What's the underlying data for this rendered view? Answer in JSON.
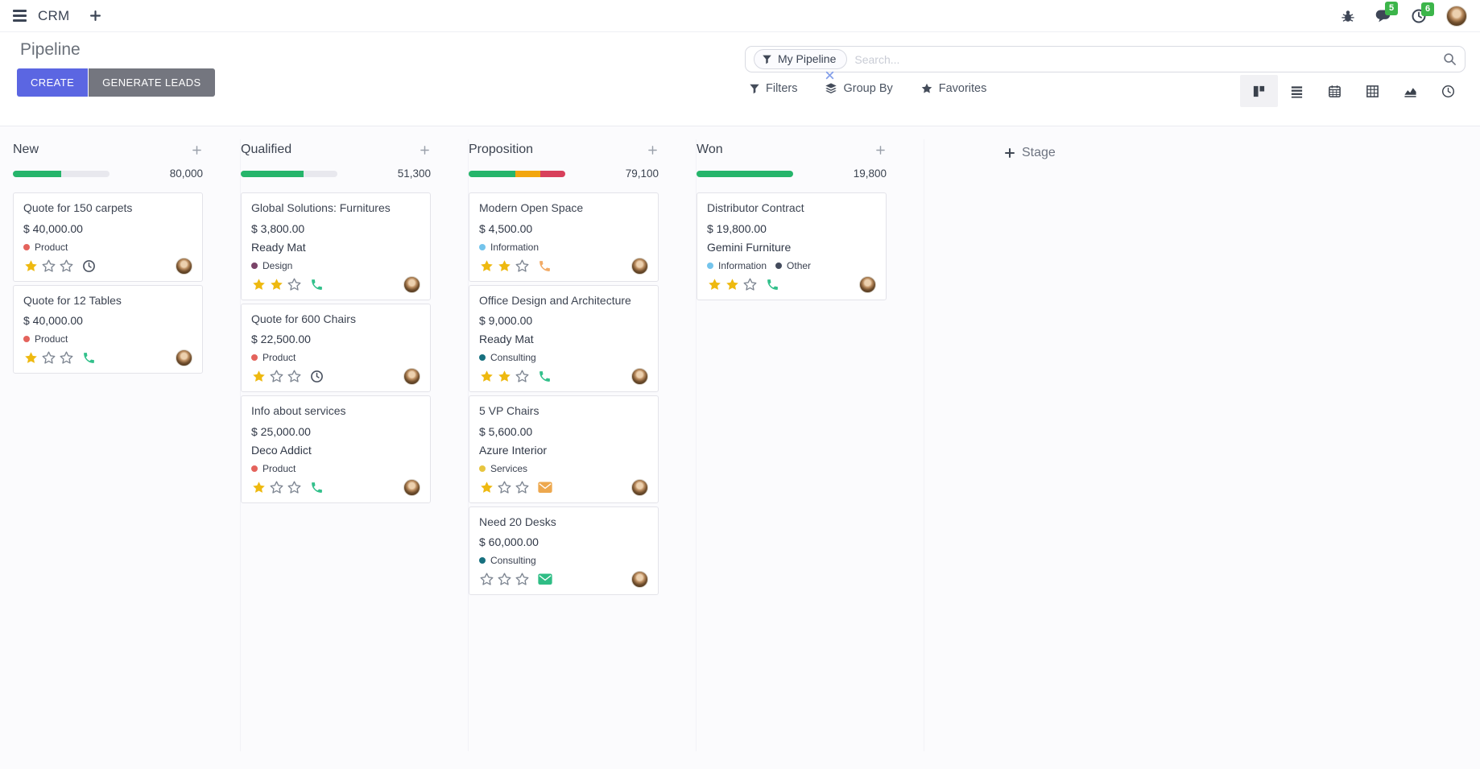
{
  "navbar": {
    "app_name": "CRM",
    "messages_badge": "5",
    "activities_badge": "6"
  },
  "control_panel": {
    "title": "Pipeline",
    "create_label": "CREATE",
    "generate_leads_label": "GENERATE LEADS",
    "search": {
      "facet_label": "My Pipeline",
      "placeholder": "Search..."
    },
    "filters_label": "Filters",
    "group_by_label": "Group By",
    "favorites_label": "Favorites",
    "view_switcher": [
      {
        "name": "kanban",
        "active": true
      },
      {
        "name": "list",
        "active": false
      },
      {
        "name": "calendar",
        "active": false
      },
      {
        "name": "pivot",
        "active": false
      },
      {
        "name": "graph",
        "active": false
      },
      {
        "name": "activity",
        "active": false
      }
    ]
  },
  "kanban": {
    "add_stage_label": "Stage",
    "columns": [
      {
        "name": "New",
        "total": "80,000",
        "progress": [
          {
            "color": "#26b56b",
            "pct": 50
          }
        ],
        "cards": [
          {
            "title": "Quote for 150 carpets",
            "amount": "$ 40,000.00",
            "partner": "",
            "tags": [
              {
                "color": "#e4635c",
                "label": "Product"
              }
            ],
            "stars": 1,
            "activity": {
              "type": "clock",
              "color": "#4a5260"
            }
          },
          {
            "title": "Quote for 12 Tables",
            "amount": "$ 40,000.00",
            "partner": "",
            "tags": [
              {
                "color": "#e4635c",
                "label": "Product"
              }
            ],
            "stars": 1,
            "activity": {
              "type": "phone",
              "color": "#32c08b"
            }
          }
        ]
      },
      {
        "name": "Qualified",
        "total": "51,300",
        "progress": [
          {
            "color": "#26b56b",
            "pct": 65
          }
        ],
        "cards": [
          {
            "title": "Global Solutions: Furnitures",
            "amount": "$ 3,800.00",
            "partner": "Ready Mat",
            "tags": [
              {
                "color": "#7a4468",
                "label": "Design"
              }
            ],
            "stars": 2,
            "activity": {
              "type": "phone",
              "color": "#32c08b"
            }
          },
          {
            "title": "Quote for 600 Chairs",
            "amount": "$ 22,500.00",
            "partner": "",
            "tags": [
              {
                "color": "#e4635c",
                "label": "Product"
              }
            ],
            "stars": 1,
            "activity": {
              "type": "clock",
              "color": "#4a5260"
            }
          },
          {
            "title": "Info about services",
            "amount": "$ 25,000.00",
            "partner": "Deco Addict",
            "tags": [
              {
                "color": "#e4635c",
                "label": "Product"
              }
            ],
            "stars": 1,
            "activity": {
              "type": "phone",
              "color": "#32c08b"
            }
          }
        ]
      },
      {
        "name": "Proposition",
        "total": "79,100",
        "progress": [
          {
            "color": "#26b56b",
            "pct": 48
          },
          {
            "color": "#f2a60e",
            "pct": 26
          },
          {
            "color": "#d8405b",
            "pct": 26
          }
        ],
        "cards": [
          {
            "title": "Modern Open Space",
            "amount": "$ 4,500.00",
            "partner": "",
            "tags": [
              {
                "color": "#74c4ec",
                "label": "Information"
              }
            ],
            "stars": 2,
            "activity": {
              "type": "phone",
              "color": "#f2ab66"
            }
          },
          {
            "title": "Office Design and Architecture",
            "amount": "$ 9,000.00",
            "partner": "Ready Mat",
            "tags": [
              {
                "color": "#17707f",
                "label": "Consulting"
              }
            ],
            "stars": 2,
            "activity": {
              "type": "phone",
              "color": "#32c08b"
            }
          },
          {
            "title": "5 VP Chairs",
            "amount": "$ 5,600.00",
            "partner": "Azure Interior",
            "tags": [
              {
                "color": "#e7c53f",
                "label": "Services"
              }
            ],
            "stars": 1,
            "activity": {
              "type": "envelope",
              "color": "#eda84e"
            }
          },
          {
            "title": "Need 20 Desks",
            "amount": "$ 60,000.00",
            "partner": "",
            "tags": [
              {
                "color": "#17707f",
                "label": "Consulting"
              }
            ],
            "stars": 0,
            "activity": {
              "type": "envelope",
              "color": "#2fbd85"
            }
          }
        ]
      },
      {
        "name": "Won",
        "total": "19,800",
        "progress": [
          {
            "color": "#26b56b",
            "pct": 100
          }
        ],
        "cards": [
          {
            "title": "Distributor Contract",
            "amount": "$ 19,800.00",
            "partner": "Gemini Furniture",
            "tags": [
              {
                "color": "#74c4ec",
                "label": "Information"
              },
              {
                "color": "#434b5c",
                "label": "Other"
              }
            ],
            "stars": 2,
            "activity": {
              "type": "phone",
              "color": "#32c08b"
            }
          }
        ]
      }
    ]
  }
}
